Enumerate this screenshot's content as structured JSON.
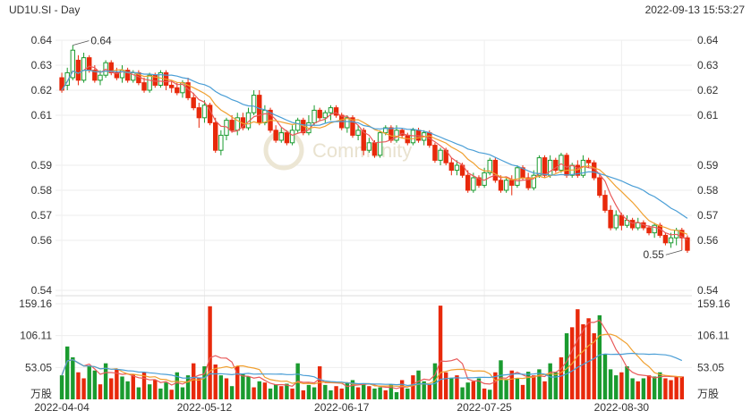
{
  "header": {
    "symbol_period": "UD1U.SI - Day",
    "timestamp": "2022-09-13 15:53:27"
  },
  "watermark": "Community",
  "colors": {
    "up": "#1a9b2f",
    "down": "#e8290b",
    "ma_short": "#e85a5a",
    "ma_mid": "#f0a030",
    "ma_long": "#4a9ed6",
    "grid": "#eeeeee"
  },
  "chart_data": {
    "type": "candlestick",
    "price_axis": {
      "ticks": [
        0.64,
        0.63,
        0.62,
        0.61,
        0.59,
        0.58,
        0.57,
        0.56,
        0.54
      ],
      "range": [
        0.54,
        0.64
      ]
    },
    "volume_axis": {
      "ticks": [
        159.16,
        106.11,
        53.05
      ],
      "unit": "万股",
      "range": [
        0,
        159.16
      ]
    },
    "x_labels": [
      {
        "label": "2022-04-04",
        "index": 0
      },
      {
        "label": "2022-05-12",
        "index": 26
      },
      {
        "label": "2022-06-17",
        "index": 51
      },
      {
        "label": "2022-07-25",
        "index": 77
      },
      {
        "label": "2022-08-30",
        "index": 102
      }
    ],
    "annotations": [
      {
        "text": "0.64",
        "kind": "high",
        "index": 2
      },
      {
        "text": "0.55",
        "kind": "low",
        "index": 113
      }
    ],
    "candles": [
      [
        0.625,
        0.62,
        0.627,
        0.619
      ],
      [
        0.622,
        0.627,
        0.629,
        0.62
      ],
      [
        0.625,
        0.636,
        0.638,
        0.624
      ],
      [
        0.632,
        0.624,
        0.634,
        0.622
      ],
      [
        0.624,
        0.633,
        0.635,
        0.623
      ],
      [
        0.633,
        0.628,
        0.634,
        0.627
      ],
      [
        0.628,
        0.624,
        0.63,
        0.623
      ],
      [
        0.624,
        0.626,
        0.628,
        0.622
      ],
      [
        0.626,
        0.631,
        0.632,
        0.625
      ],
      [
        0.631,
        0.627,
        0.632,
        0.626
      ],
      [
        0.627,
        0.625,
        0.629,
        0.624
      ],
      [
        0.625,
        0.628,
        0.63,
        0.623
      ],
      [
        0.628,
        0.624,
        0.629,
        0.623
      ],
      [
        0.624,
        0.627,
        0.628,
        0.623
      ],
      [
        0.627,
        0.623,
        0.628,
        0.622
      ],
      [
        0.623,
        0.62,
        0.625,
        0.619
      ],
      [
        0.62,
        0.626,
        0.627,
        0.619
      ],
      [
        0.626,
        0.622,
        0.627,
        0.621
      ],
      [
        0.622,
        0.627,
        0.628,
        0.621
      ],
      [
        0.627,
        0.622,
        0.628,
        0.62
      ],
      [
        0.622,
        0.621,
        0.624,
        0.619
      ],
      [
        0.621,
        0.619,
        0.623,
        0.618
      ],
      [
        0.619,
        0.623,
        0.624,
        0.617
      ],
      [
        0.623,
        0.617,
        0.625,
        0.616
      ],
      [
        0.617,
        0.613,
        0.619,
        0.612
      ],
      [
        0.613,
        0.609,
        0.615,
        0.605
      ],
      [
        0.609,
        0.614,
        0.616,
        0.607
      ],
      [
        0.614,
        0.607,
        0.615,
        0.606
      ],
      [
        0.607,
        0.596,
        0.609,
        0.595
      ],
      [
        0.596,
        0.602,
        0.604,
        0.594
      ],
      [
        0.602,
        0.608,
        0.609,
        0.6
      ],
      [
        0.608,
        0.604,
        0.61,
        0.603
      ],
      [
        0.604,
        0.609,
        0.611,
        0.602
      ],
      [
        0.609,
        0.605,
        0.611,
        0.604
      ],
      [
        0.605,
        0.611,
        0.613,
        0.604
      ],
      [
        0.611,
        0.618,
        0.62,
        0.61
      ],
      [
        0.618,
        0.607,
        0.62,
        0.606
      ],
      [
        0.607,
        0.612,
        0.614,
        0.606
      ],
      [
        0.612,
        0.604,
        0.613,
        0.603
      ],
      [
        0.604,
        0.6,
        0.606,
        0.599
      ],
      [
        0.6,
        0.603,
        0.605,
        0.599
      ],
      [
        0.603,
        0.599,
        0.604,
        0.598
      ],
      [
        0.599,
        0.604,
        0.606,
        0.598
      ],
      [
        0.604,
        0.608,
        0.609,
        0.603
      ],
      [
        0.608,
        0.603,
        0.609,
        0.602
      ],
      [
        0.603,
        0.607,
        0.61,
        0.602
      ],
      [
        0.607,
        0.612,
        0.614,
        0.606
      ],
      [
        0.612,
        0.609,
        0.613,
        0.608
      ],
      [
        0.609,
        0.611,
        0.612,
        0.607
      ],
      [
        0.611,
        0.613,
        0.614,
        0.608
      ],
      [
        0.613,
        0.61,
        0.614,
        0.609
      ],
      [
        0.61,
        0.605,
        0.611,
        0.604
      ],
      [
        0.605,
        0.609,
        0.61,
        0.603
      ],
      [
        0.609,
        0.602,
        0.61,
        0.601
      ],
      [
        0.602,
        0.604,
        0.606,
        0.6
      ],
      [
        0.604,
        0.596,
        0.605,
        0.594
      ],
      [
        0.596,
        0.599,
        0.601,
        0.595
      ],
      [
        0.599,
        0.594,
        0.6,
        0.593
      ],
      [
        0.594,
        0.603,
        0.604,
        0.593
      ],
      [
        0.603,
        0.605,
        0.606,
        0.602
      ],
      [
        0.605,
        0.6,
        0.606,
        0.599
      ],
      [
        0.6,
        0.604,
        0.606,
        0.599
      ],
      [
        0.604,
        0.602,
        0.605,
        0.601
      ],
      [
        0.602,
        0.599,
        0.603,
        0.598
      ],
      [
        0.599,
        0.604,
        0.605,
        0.598
      ],
      [
        0.604,
        0.6,
        0.605,
        0.599
      ],
      [
        0.6,
        0.603,
        0.604,
        0.598
      ],
      [
        0.603,
        0.598,
        0.604,
        0.597
      ],
      [
        0.598,
        0.592,
        0.599,
        0.591
      ],
      [
        0.592,
        0.596,
        0.597,
        0.59
      ],
      [
        0.596,
        0.591,
        0.597,
        0.59
      ],
      [
        0.591,
        0.588,
        0.593,
        0.586
      ],
      [
        0.588,
        0.59,
        0.592,
        0.586
      ],
      [
        0.59,
        0.586,
        0.591,
        0.585
      ],
      [
        0.586,
        0.58,
        0.588,
        0.579
      ],
      [
        0.58,
        0.585,
        0.587,
        0.579
      ],
      [
        0.585,
        0.582,
        0.586,
        0.581
      ],
      [
        0.582,
        0.587,
        0.589,
        0.581
      ],
      [
        0.587,
        0.592,
        0.593,
        0.586
      ],
      [
        0.592,
        0.584,
        0.593,
        0.583
      ],
      [
        0.584,
        0.58,
        0.586,
        0.579
      ],
      [
        0.58,
        0.584,
        0.585,
        0.579
      ],
      [
        0.584,
        0.582,
        0.586,
        0.578
      ],
      [
        0.582,
        0.589,
        0.59,
        0.581
      ],
      [
        0.589,
        0.585,
        0.59,
        0.584
      ],
      [
        0.585,
        0.581,
        0.587,
        0.58
      ],
      [
        0.581,
        0.586,
        0.588,
        0.58
      ],
      [
        0.586,
        0.593,
        0.594,
        0.585
      ],
      [
        0.593,
        0.586,
        0.594,
        0.585
      ],
      [
        0.586,
        0.592,
        0.594,
        0.585
      ],
      [
        0.592,
        0.588,
        0.593,
        0.587
      ],
      [
        0.588,
        0.594,
        0.595,
        0.587
      ],
      [
        0.594,
        0.586,
        0.595,
        0.585
      ],
      [
        0.586,
        0.59,
        0.591,
        0.585
      ],
      [
        0.59,
        0.586,
        0.592,
        0.585
      ],
      [
        0.586,
        0.592,
        0.594,
        0.585
      ],
      [
        0.592,
        0.591,
        0.593,
        0.589
      ],
      [
        0.591,
        0.585,
        0.592,
        0.584
      ],
      [
        0.585,
        0.578,
        0.587,
        0.577
      ],
      [
        0.578,
        0.572,
        0.58,
        0.571
      ],
      [
        0.572,
        0.565,
        0.574,
        0.564
      ],
      [
        0.565,
        0.57,
        0.572,
        0.564
      ],
      [
        0.57,
        0.566,
        0.571,
        0.564
      ],
      [
        0.566,
        0.568,
        0.57,
        0.565
      ],
      [
        0.568,
        0.565,
        0.569,
        0.564
      ],
      [
        0.565,
        0.567,
        0.569,
        0.564
      ],
      [
        0.567,
        0.565,
        0.568,
        0.564
      ],
      [
        0.565,
        0.563,
        0.566,
        0.562
      ],
      [
        0.563,
        0.566,
        0.567,
        0.561
      ],
      [
        0.566,
        0.562,
        0.567,
        0.561
      ],
      [
        0.562,
        0.559,
        0.563,
        0.558
      ],
      [
        0.559,
        0.561,
        0.563,
        0.557
      ],
      [
        0.561,
        0.564,
        0.565,
        0.558
      ],
      [
        0.564,
        0.561,
        0.565,
        0.556
      ],
      [
        0.561,
        0.556,
        0.562,
        0.555
      ]
    ],
    "volumes": [
      [
        40,
        1
      ],
      [
        88,
        1
      ],
      [
        70,
        1
      ],
      [
        45,
        -1
      ],
      [
        35,
        -1
      ],
      [
        55,
        1
      ],
      [
        48,
        1
      ],
      [
        25,
        -1
      ],
      [
        60,
        1
      ],
      [
        35,
        -1
      ],
      [
        50,
        -1
      ],
      [
        38,
        1
      ],
      [
        30,
        1
      ],
      [
        42,
        -1
      ],
      [
        20,
        1
      ],
      [
        45,
        -1
      ],
      [
        25,
        1
      ],
      [
        32,
        -1
      ],
      [
        18,
        1
      ],
      [
        28,
        1
      ],
      [
        16,
        -1
      ],
      [
        45,
        1
      ],
      [
        20,
        1
      ],
      [
        40,
        1
      ],
      [
        60,
        -1
      ],
      [
        36,
        -1
      ],
      [
        55,
        1
      ],
      [
        155,
        -1
      ],
      [
        58,
        -1
      ],
      [
        40,
        1
      ],
      [
        35,
        -1
      ],
      [
        22,
        1
      ],
      [
        55,
        -1
      ],
      [
        42,
        1
      ],
      [
        38,
        1
      ],
      [
        20,
        -1
      ],
      [
        30,
        1
      ],
      [
        28,
        -1
      ],
      [
        18,
        1
      ],
      [
        25,
        1
      ],
      [
        22,
        -1
      ],
      [
        26,
        1
      ],
      [
        18,
        -1
      ],
      [
        60,
        1
      ],
      [
        15,
        -1
      ],
      [
        24,
        1
      ],
      [
        20,
        1
      ],
      [
        55,
        -1
      ],
      [
        24,
        1
      ],
      [
        15,
        1
      ],
      [
        22,
        -1
      ],
      [
        18,
        -1
      ],
      [
        28,
        1
      ],
      [
        32,
        1
      ],
      [
        20,
        -1
      ],
      [
        26,
        1
      ],
      [
        22,
        -1
      ],
      [
        18,
        1
      ],
      [
        20,
        1
      ],
      [
        15,
        -1
      ],
      [
        25,
        1
      ],
      [
        12,
        1
      ],
      [
        32,
        -1
      ],
      [
        18,
        1
      ],
      [
        40,
        -1
      ],
      [
        48,
        1
      ],
      [
        30,
        1
      ],
      [
        25,
        -1
      ],
      [
        60,
        1
      ],
      [
        156,
        -1
      ],
      [
        45,
        -1
      ],
      [
        36,
        1
      ],
      [
        40,
        -1
      ],
      [
        20,
        1
      ],
      [
        28,
        1
      ],
      [
        30,
        -1
      ],
      [
        35,
        1
      ],
      [
        18,
        -1
      ],
      [
        16,
        1
      ],
      [
        45,
        -1
      ],
      [
        65,
        1
      ],
      [
        32,
        1
      ],
      [
        48,
        -1
      ],
      [
        35,
        1
      ],
      [
        24,
        -1
      ],
      [
        46,
        1
      ],
      [
        40,
        -1
      ],
      [
        50,
        1
      ],
      [
        30,
        -1
      ],
      [
        60,
        1
      ],
      [
        45,
        1
      ],
      [
        70,
        -1
      ],
      [
        110,
        1
      ],
      [
        120,
        -1
      ],
      [
        150,
        -1
      ],
      [
        125,
        -1
      ],
      [
        135,
        -1
      ],
      [
        110,
        -1
      ],
      [
        140,
        1
      ],
      [
        75,
        1
      ],
      [
        50,
        1
      ],
      [
        40,
        1
      ],
      [
        45,
        -1
      ],
      [
        55,
        1
      ],
      [
        35,
        1
      ],
      [
        30,
        -1
      ],
      [
        35,
        1
      ],
      [
        40,
        -1
      ],
      [
        38,
        1
      ],
      [
        45,
        1
      ],
      [
        35,
        -1
      ],
      [
        32,
        -1
      ],
      [
        38,
        -1
      ],
      [
        38,
        -1
      ]
    ]
  }
}
